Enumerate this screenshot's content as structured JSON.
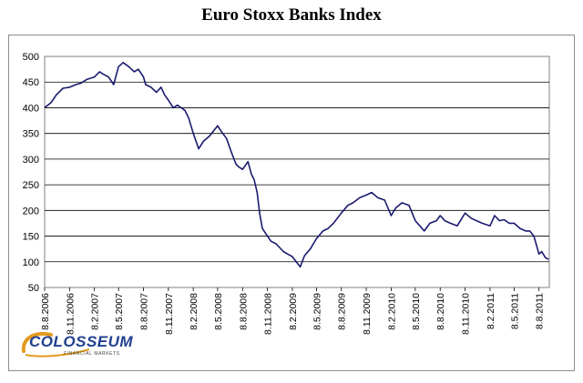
{
  "chart_data": {
    "type": "line",
    "title": "Euro Stoxx Banks Index",
    "ylim": [
      50,
      500
    ],
    "yticks": [
      50,
      100,
      150,
      200,
      250,
      300,
      350,
      400,
      450,
      500
    ],
    "xlim": [
      "2006-08-08",
      "2011-09-15"
    ],
    "xticks": [
      {
        "label": "8.8.2006",
        "date": "2006-08-08"
      },
      {
        "label": "8.11.2006",
        "date": "2006-11-08"
      },
      {
        "label": "8.2.2007",
        "date": "2007-02-08"
      },
      {
        "label": "8.5.2007",
        "date": "2007-05-08"
      },
      {
        "label": "8.8.2007",
        "date": "2007-08-08"
      },
      {
        "label": "8.11.2007",
        "date": "2007-11-08"
      },
      {
        "label": "8.2.2008",
        "date": "2008-02-08"
      },
      {
        "label": "8.5.2008",
        "date": "2008-05-08"
      },
      {
        "label": "8.8.2008",
        "date": "2008-08-08"
      },
      {
        "label": "8.11.2008",
        "date": "2008-11-08"
      },
      {
        "label": "8.2.2009",
        "date": "2009-02-08"
      },
      {
        "label": "8.5.2009",
        "date": "2009-05-08"
      },
      {
        "label": "8.8.2009",
        "date": "2009-08-08"
      },
      {
        "label": "8.11.2009",
        "date": "2009-11-08"
      },
      {
        "label": "8.2.2010",
        "date": "2010-02-08"
      },
      {
        "label": "8.5.2010",
        "date": "2010-05-08"
      },
      {
        "label": "8.8.2010",
        "date": "2010-08-08"
      },
      {
        "label": "8.11.2010",
        "date": "2010-11-08"
      },
      {
        "label": "8.2.2011",
        "date": "2011-02-08"
      },
      {
        "label": "8.5.2011",
        "date": "2011-05-08"
      },
      {
        "label": "8.8.2011",
        "date": "2011-08-08"
      }
    ],
    "grid": "horizontal",
    "legend": "none",
    "line_color": "#1a1a6e",
    "series": [
      {
        "x": [
          "2006-08-08",
          "2006-09-01",
          "2006-09-20",
          "2006-10-15",
          "2006-11-08",
          "2006-12-01",
          "2006-12-20",
          "2007-01-10",
          "2007-02-08",
          "2007-02-27",
          "2007-03-14",
          "2007-04-01",
          "2007-04-20",
          "2007-05-08",
          "2007-05-25",
          "2007-06-15",
          "2007-07-05",
          "2007-07-20",
          "2007-08-08",
          "2007-08-16",
          "2007-09-05",
          "2007-09-25",
          "2007-10-12",
          "2007-10-25",
          "2007-11-08",
          "2007-11-26",
          "2007-12-12",
          "2008-01-08",
          "2008-01-22",
          "2008-02-08",
          "2008-02-28",
          "2008-03-17",
          "2008-04-08",
          "2008-05-08",
          "2008-05-20",
          "2008-06-10",
          "2008-06-30",
          "2008-07-15",
          "2008-07-25",
          "2008-08-08",
          "2008-08-28",
          "2008-09-10",
          "2008-09-20",
          "2008-10-01",
          "2008-10-10",
          "2008-10-20",
          "2008-11-08",
          "2008-11-21",
          "2008-12-10",
          "2009-01-06",
          "2009-01-22",
          "2009-02-08",
          "2009-03-09",
          "2009-03-25",
          "2009-04-15",
          "2009-05-08",
          "2009-06-01",
          "2009-06-20",
          "2009-07-10",
          "2009-08-08",
          "2009-09-01",
          "2009-09-20",
          "2009-10-15",
          "2009-11-08",
          "2009-11-28",
          "2009-12-20",
          "2010-01-15",
          "2010-02-08",
          "2010-02-25",
          "2010-03-20",
          "2010-04-15",
          "2010-05-08",
          "2010-05-25",
          "2010-06-10",
          "2010-07-01",
          "2010-07-25",
          "2010-08-08",
          "2010-08-25",
          "2010-09-15",
          "2010-10-10",
          "2010-11-08",
          "2010-11-30",
          "2010-12-20",
          "2011-01-10",
          "2011-02-08",
          "2011-02-25",
          "2011-03-15",
          "2011-04-01",
          "2011-04-20",
          "2011-05-08",
          "2011-05-30",
          "2011-06-20",
          "2011-07-05",
          "2011-07-20",
          "2011-08-08",
          "2011-08-18",
          "2011-09-01",
          "2011-09-12"
        ],
        "values": [
          400,
          410,
          425,
          438,
          440,
          445,
          448,
          455,
          460,
          470,
          465,
          460,
          445,
          480,
          488,
          480,
          470,
          475,
          460,
          445,
          440,
          430,
          440,
          425,
          415,
          400,
          405,
          395,
          380,
          350,
          320,
          335,
          345,
          365,
          355,
          340,
          310,
          290,
          285,
          280,
          295,
          270,
          260,
          235,
          195,
          165,
          150,
          140,
          135,
          120,
          115,
          110,
          90,
          112,
          125,
          145,
          160,
          165,
          175,
          195,
          210,
          215,
          225,
          230,
          235,
          225,
          220,
          190,
          205,
          215,
          210,
          180,
          170,
          160,
          175,
          180,
          190,
          180,
          175,
          170,
          195,
          185,
          180,
          175,
          170,
          190,
          180,
          182,
          175,
          175,
          165,
          160,
          160,
          150,
          115,
          120,
          108,
          105
        ]
      }
    ]
  },
  "logo": {
    "word": "COLOSSEUM",
    "sub": "FINANCIAL MARKETS"
  }
}
